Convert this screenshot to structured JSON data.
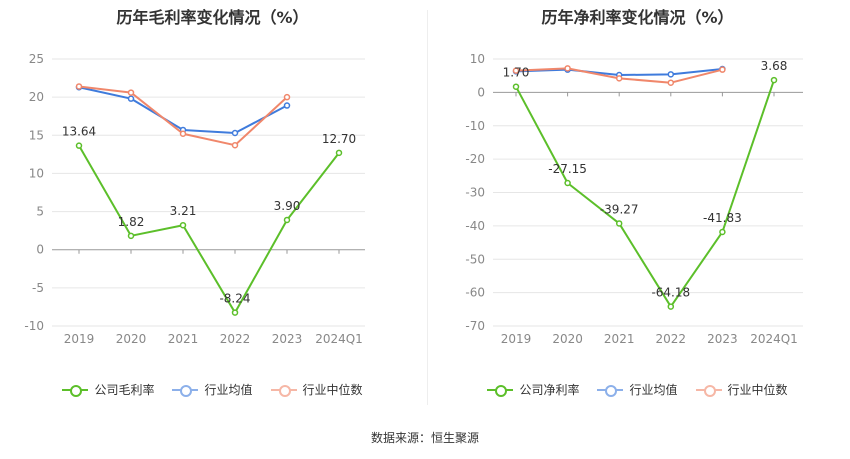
{
  "source": "数据来源：恒生聚源",
  "colors": {
    "company": "#5cbf2a",
    "industry_avg": "#3f7bdc",
    "industry_median": "#f0876b",
    "axis": "#888888",
    "grid": "#e6e6e6"
  },
  "chart_data": [
    {
      "type": "line",
      "title": "历年毛利率变化情况（%）",
      "categories": [
        "2019",
        "2020",
        "2021",
        "2022",
        "2023",
        "2024Q1"
      ],
      "ylim": [
        -10,
        25
      ],
      "yticks": [
        25,
        20,
        15,
        10,
        5,
        0,
        -5,
        -10
      ],
      "grid": true,
      "legend_position": "bottom",
      "series": [
        {
          "name": "公司毛利率",
          "key": "company",
          "values": [
            13.64,
            1.82,
            3.21,
            -8.24,
            3.9,
            12.7
          ],
          "labels": [
            "13.64",
            "1.82",
            "3.21",
            "-8.24",
            "3.90",
            "12.70"
          ]
        },
        {
          "name": "行业均值",
          "key": "industry_avg",
          "values": [
            21.3,
            19.8,
            15.7,
            15.3,
            18.9,
            null
          ]
        },
        {
          "name": "行业中位数",
          "key": "industry_median",
          "values": [
            21.4,
            20.6,
            15.2,
            13.7,
            20.0,
            null
          ]
        }
      ]
    },
    {
      "type": "line",
      "title": "历年净利率变化情况（%）",
      "categories": [
        "2019",
        "2020",
        "2021",
        "2022",
        "2023",
        "2024Q1"
      ],
      "ylim": [
        -70,
        10
      ],
      "yticks": [
        10,
        0,
        -10,
        -20,
        -30,
        -40,
        -50,
        -60,
        -70
      ],
      "grid": true,
      "legend_position": "bottom",
      "series": [
        {
          "name": "公司净利率",
          "key": "company",
          "values": [
            1.7,
            -27.15,
            -39.27,
            -64.18,
            -41.83,
            3.68
          ],
          "labels": [
            "1.70",
            "-27.15",
            "-39.27",
            "-64.18",
            "-41.83",
            "3.68"
          ]
        },
        {
          "name": "行业均值",
          "key": "industry_avg",
          "values": [
            6.3,
            6.8,
            5.2,
            5.4,
            7.0,
            null
          ]
        },
        {
          "name": "行业中位数",
          "key": "industry_median",
          "values": [
            6.5,
            7.2,
            4.2,
            2.9,
            6.8,
            null
          ]
        }
      ]
    }
  ]
}
